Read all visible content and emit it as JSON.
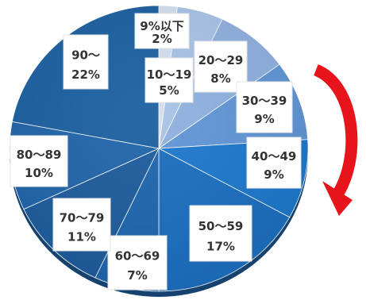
{
  "chart_data": {
    "type": "pie",
    "title": "",
    "slices": [
      {
        "label": "9%以下",
        "value": 2,
        "value_text": "2%",
        "color": "#d2deef"
      },
      {
        "label": "10～19",
        "value": 5,
        "value_text": "5%",
        "color": "#a8c2e6"
      },
      {
        "label": "20～29",
        "value": 8,
        "value_text": "8%",
        "color": "#8fb0df"
      },
      {
        "label": "30～39",
        "value": 9,
        "value_text": "9%",
        "color": "#5f95d6"
      },
      {
        "label": "40～49",
        "value": 9,
        "value_text": "9%",
        "color": "#1c78cc"
      },
      {
        "label": "50～59",
        "value": 17,
        "value_text": "17%",
        "color": "#1a6dbf"
      },
      {
        "label": "60～69",
        "value": 7,
        "value_text": "7%",
        "color": "#1d64ad"
      },
      {
        "label": "70～79",
        "value": 11,
        "value_text": "11%",
        "color": "#1c5b9c"
      },
      {
        "label": "80～89",
        "value": 10,
        "value_text": "10%",
        "color": "#1f64aa"
      },
      {
        "label": "90～",
        "value": 22,
        "value_text": "22%",
        "color": "#1a5fa0"
      }
    ],
    "start_angle_deg": 0,
    "direction": "clockwise",
    "legend": "none",
    "arrow_color": "#e8141b"
  }
}
